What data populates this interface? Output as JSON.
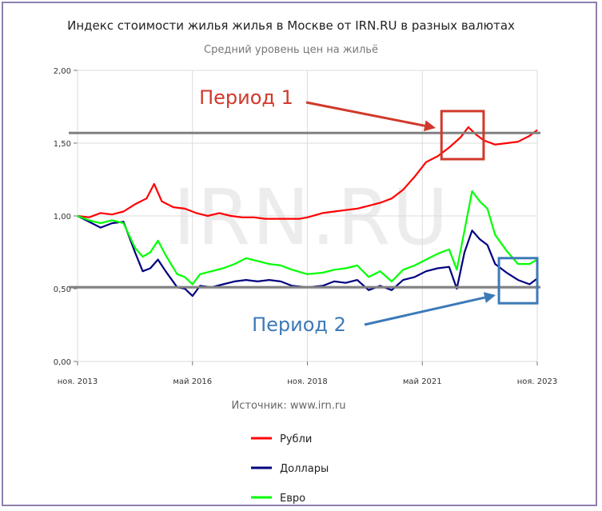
{
  "chart_data": {
    "type": "line",
    "title": "Индекс стоимости жилья жилья в Москве от IRN.RU в разных валютах",
    "subtitle": "Средний уровень цен на жильё",
    "source": "Источник: www.irn.ru",
    "watermark": "IRN.RU",
    "x_range": [
      "2013-11",
      "2023-11"
    ],
    "x_ticks": [
      "ноя. 2013",
      "май 2016",
      "ноя. 2018",
      "май 2021",
      "ноя. 2023"
    ],
    "ylim": [
      0,
      2
    ],
    "y_ticks": [
      "0,00",
      "0,50",
      "1,00",
      "1,50",
      "2,00"
    ],
    "grid": true,
    "legend_position": "bottom",
    "series": [
      {
        "name": "Рубли",
        "color": "#ff0000",
        "points": [
          [
            "2013-11",
            1.0
          ],
          [
            "2014-02",
            0.99
          ],
          [
            "2014-05",
            1.02
          ],
          [
            "2014-08",
            1.01
          ],
          [
            "2014-11",
            1.03
          ],
          [
            "2015-02",
            1.08
          ],
          [
            "2015-05",
            1.12
          ],
          [
            "2015-07",
            1.22
          ],
          [
            "2015-09",
            1.1
          ],
          [
            "2015-12",
            1.06
          ],
          [
            "2016-03",
            1.05
          ],
          [
            "2016-06",
            1.02
          ],
          [
            "2016-09",
            1.0
          ],
          [
            "2016-12",
            1.02
          ],
          [
            "2017-03",
            1.0
          ],
          [
            "2017-06",
            0.99
          ],
          [
            "2017-09",
            0.99
          ],
          [
            "2017-12",
            0.98
          ],
          [
            "2018-03",
            0.98
          ],
          [
            "2018-06",
            0.98
          ],
          [
            "2018-09",
            0.98
          ],
          [
            "2018-11",
            0.99
          ],
          [
            "2019-03",
            1.02
          ],
          [
            "2019-06",
            1.03
          ],
          [
            "2019-09",
            1.04
          ],
          [
            "2019-12",
            1.05
          ],
          [
            "2020-03",
            1.07
          ],
          [
            "2020-06",
            1.09
          ],
          [
            "2020-09",
            1.12
          ],
          [
            "2020-12",
            1.18
          ],
          [
            "2021-03",
            1.27
          ],
          [
            "2021-06",
            1.37
          ],
          [
            "2021-09",
            1.41
          ],
          [
            "2021-12",
            1.47
          ],
          [
            "2022-03",
            1.54
          ],
          [
            "2022-05",
            1.61
          ],
          [
            "2022-07",
            1.56
          ],
          [
            "2022-09",
            1.52
          ],
          [
            "2022-12",
            1.49
          ],
          [
            "2023-03",
            1.5
          ],
          [
            "2023-06",
            1.51
          ],
          [
            "2023-09",
            1.55
          ],
          [
            "2023-11",
            1.59
          ]
        ]
      },
      {
        "name": "Доллары",
        "color": "#000080",
        "points": [
          [
            "2013-11",
            1.0
          ],
          [
            "2014-02",
            0.96
          ],
          [
            "2014-05",
            0.92
          ],
          [
            "2014-08",
            0.95
          ],
          [
            "2014-11",
            0.96
          ],
          [
            "2015-02",
            0.75
          ],
          [
            "2015-04",
            0.62
          ],
          [
            "2015-06",
            0.64
          ],
          [
            "2015-08",
            0.7
          ],
          [
            "2015-10",
            0.62
          ],
          [
            "2016-01",
            0.51
          ],
          [
            "2016-03",
            0.5
          ],
          [
            "2016-05",
            0.45
          ],
          [
            "2016-07",
            0.52
          ],
          [
            "2016-10",
            0.51
          ],
          [
            "2017-01",
            0.53
          ],
          [
            "2017-04",
            0.55
          ],
          [
            "2017-07",
            0.56
          ],
          [
            "2017-10",
            0.55
          ],
          [
            "2018-01",
            0.56
          ],
          [
            "2018-04",
            0.55
          ],
          [
            "2018-07",
            0.52
          ],
          [
            "2018-11",
            0.51
          ],
          [
            "2019-03",
            0.52
          ],
          [
            "2019-06",
            0.55
          ],
          [
            "2019-09",
            0.54
          ],
          [
            "2019-12",
            0.56
          ],
          [
            "2020-03",
            0.49
          ],
          [
            "2020-06",
            0.52
          ],
          [
            "2020-09",
            0.49
          ],
          [
            "2020-12",
            0.56
          ],
          [
            "2021-03",
            0.58
          ],
          [
            "2021-06",
            0.62
          ],
          [
            "2021-09",
            0.64
          ],
          [
            "2021-12",
            0.65
          ],
          [
            "2022-02",
            0.5
          ],
          [
            "2022-04",
            0.75
          ],
          [
            "2022-06",
            0.9
          ],
          [
            "2022-08",
            0.84
          ],
          [
            "2022-10",
            0.8
          ],
          [
            "2022-12",
            0.67
          ],
          [
            "2023-03",
            0.61
          ],
          [
            "2023-06",
            0.56
          ],
          [
            "2023-09",
            0.53
          ],
          [
            "2023-11",
            0.57
          ]
        ]
      },
      {
        "name": "Евро",
        "color": "#00ff00",
        "points": [
          [
            "2013-11",
            1.0
          ],
          [
            "2014-02",
            0.97
          ],
          [
            "2014-05",
            0.95
          ],
          [
            "2014-08",
            0.97
          ],
          [
            "2014-11",
            0.95
          ],
          [
            "2015-02",
            0.78
          ],
          [
            "2015-04",
            0.72
          ],
          [
            "2015-06",
            0.75
          ],
          [
            "2015-08",
            0.83
          ],
          [
            "2015-10",
            0.73
          ],
          [
            "2016-01",
            0.6
          ],
          [
            "2016-03",
            0.58
          ],
          [
            "2016-05",
            0.53
          ],
          [
            "2016-07",
            0.6
          ],
          [
            "2016-10",
            0.62
          ],
          [
            "2017-01",
            0.64
          ],
          [
            "2017-04",
            0.67
          ],
          [
            "2017-07",
            0.71
          ],
          [
            "2017-10",
            0.69
          ],
          [
            "2018-01",
            0.67
          ],
          [
            "2018-04",
            0.66
          ],
          [
            "2018-07",
            0.63
          ],
          [
            "2018-11",
            0.6
          ],
          [
            "2019-03",
            0.61
          ],
          [
            "2019-06",
            0.63
          ],
          [
            "2019-09",
            0.64
          ],
          [
            "2019-12",
            0.66
          ],
          [
            "2020-03",
            0.58
          ],
          [
            "2020-06",
            0.62
          ],
          [
            "2020-09",
            0.55
          ],
          [
            "2020-12",
            0.63
          ],
          [
            "2021-03",
            0.66
          ],
          [
            "2021-06",
            0.7
          ],
          [
            "2021-09",
            0.74
          ],
          [
            "2021-12",
            0.77
          ],
          [
            "2022-02",
            0.63
          ],
          [
            "2022-04",
            0.9
          ],
          [
            "2022-06",
            1.17
          ],
          [
            "2022-08",
            1.1
          ],
          [
            "2022-10",
            1.05
          ],
          [
            "2022-12",
            0.87
          ],
          [
            "2023-03",
            0.76
          ],
          [
            "2023-06",
            0.67
          ],
          [
            "2023-09",
            0.67
          ],
          [
            "2023-11",
            0.7
          ]
        ]
      }
    ],
    "reference_lines": [
      {
        "y": 1.57,
        "color": "#808080"
      },
      {
        "y": 0.51,
        "color": "#808080"
      }
    ],
    "annotations": [
      {
        "label": "Период 1",
        "color": "#d0392b",
        "box": {
          "x": [
            "2021-10",
            "2022-09"
          ],
          "y": [
            1.39,
            1.72
          ]
        }
      },
      {
        "label": "Период 2",
        "color": "#3d7ab8",
        "box": {
          "x": [
            "2023-01",
            "2023-11"
          ],
          "y": [
            0.4,
            0.71
          ]
        }
      }
    ]
  }
}
